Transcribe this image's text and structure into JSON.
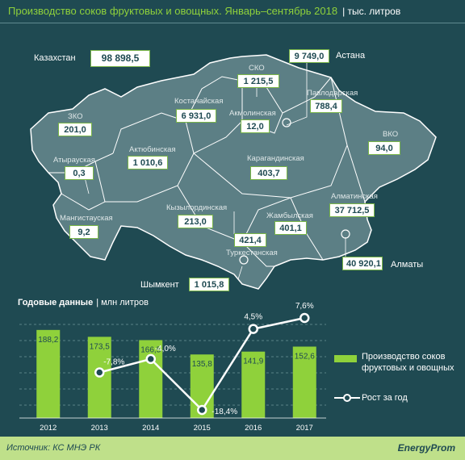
{
  "header": {
    "title": "Производство соков фруктовых и овощных. Январь–сентябрь 2018",
    "unit": "| тыс. литров"
  },
  "map": {
    "country": {
      "name": "Казахстан",
      "value": "98 898,5"
    },
    "regions": [
      {
        "name": "СКО",
        "value": "1 215,5"
      },
      {
        "name": "Астана",
        "value": "9 749,0"
      },
      {
        "name": "Павлодарская",
        "value": "788,4"
      },
      {
        "name": "Костанайская",
        "value": "6 931,0"
      },
      {
        "name": "Акмолинская",
        "value": "12,0"
      },
      {
        "name": "ЗКО",
        "value": "201,0"
      },
      {
        "name": "ВКО",
        "value": "94,0"
      },
      {
        "name": "Актюбинская",
        "value": "1 010,6"
      },
      {
        "name": "Карагандинская",
        "value": "403,7"
      },
      {
        "name": "Атырауская",
        "value": "0,3"
      },
      {
        "name": "Алматинская",
        "value": "37 712,5"
      },
      {
        "name": "Кызылординская",
        "value": "213,0"
      },
      {
        "name": "Жамбылская",
        "value": "401,1"
      },
      {
        "name": "Мангистауская",
        "value": "9,2"
      },
      {
        "name": "Туркестанская",
        "value": "421,4"
      },
      {
        "name": "Алматы",
        "value": "40 920,1"
      },
      {
        "name": "Шымкент",
        "value": "1 015,8"
      }
    ]
  },
  "annual": {
    "title": "Годовые данные",
    "unit": "| млн литров"
  },
  "chart_data": {
    "type": "bar",
    "title": "Годовые данные",
    "ylabel": "млн литров",
    "categories": [
      "2012",
      "2013",
      "2014",
      "2015",
      "2016",
      "2017"
    ],
    "series": [
      {
        "name": "Производство соков фруктовых и овощных",
        "type": "bar",
        "values": [
          188.2,
          173.5,
          166.5,
          135.8,
          141.9,
          152.6
        ],
        "labels": [
          "188,2",
          "173,5",
          "166,5",
          "135,8",
          "141,9",
          "152,6"
        ]
      },
      {
        "name": "Рост за год",
        "type": "line",
        "values": [
          null,
          -7.8,
          -4.0,
          -18.4,
          4.5,
          7.6
        ],
        "labels": [
          "",
          "-7,8%",
          "-4,0%",
          "-18,4%",
          "4,5%",
          "7,6%"
        ]
      }
    ],
    "legend": [
      "Производство соков",
      "фруктовых и овощных",
      "Рост за год"
    ],
    "legend_position": "right"
  },
  "footer": {
    "source": "Источник: КС МНЭ РК",
    "brand": "EnergyProm"
  },
  "colors": {
    "background": "#1f4a52",
    "map_fill": "#5c7f85",
    "bar": "#8fd13b",
    "line": "#ffffff",
    "accent": "#7ab648"
  }
}
